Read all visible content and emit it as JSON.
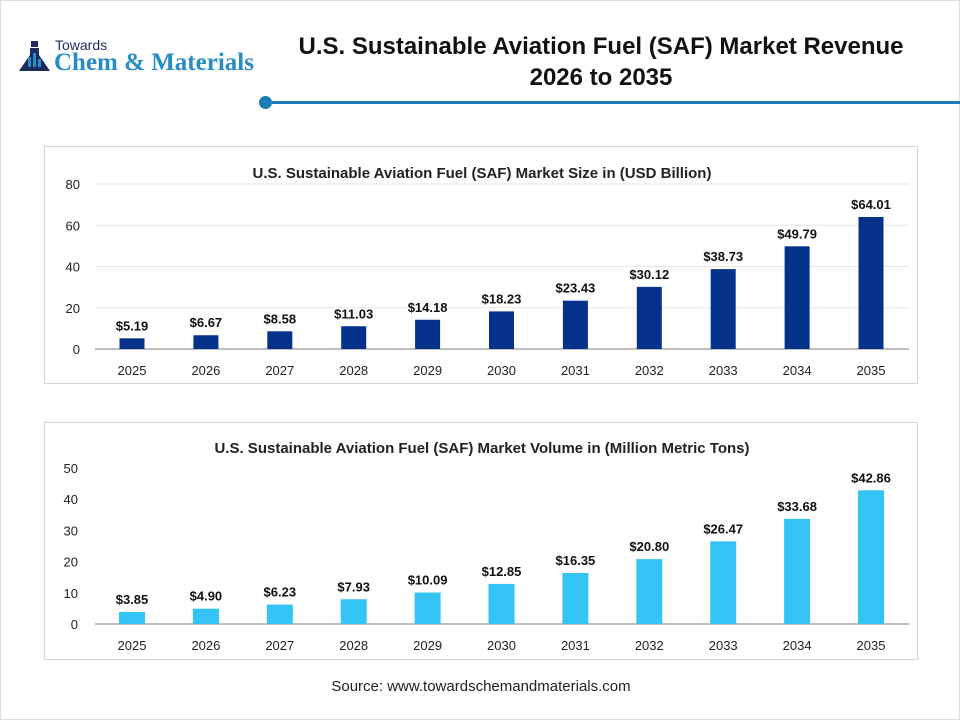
{
  "header": {
    "logo_top": "Towards",
    "logo_main": "Chem & Materials",
    "title_line1": "U.S. Sustainable Aviation Fuel (SAF) Market Revenue",
    "title_line2": "2026 to 2035",
    "accent_color": "#1a7db8"
  },
  "chart_data": [
    {
      "type": "bar",
      "title": "U.S. Sustainable Aviation Fuel (SAF) Market Size in (USD Billion)",
      "categories": [
        "2025",
        "2026",
        "2027",
        "2028",
        "2029",
        "2030",
        "2031",
        "2032",
        "2033",
        "2034",
        "2035"
      ],
      "values": [
        5.19,
        6.67,
        8.58,
        11.03,
        14.18,
        18.23,
        23.43,
        30.12,
        38.73,
        49.79,
        64.01
      ],
      "labels": [
        "$5.19",
        "$6.67",
        "$8.58",
        "$11.03",
        "$14.18",
        "$18.23",
        "$23.43",
        "$30.12",
        "$38.73",
        "$49.79",
        "$64.01"
      ],
      "yticks": [
        "0",
        "20",
        "40",
        "60",
        "80"
      ],
      "ylim": [
        0,
        80
      ],
      "grid": true,
      "color": "#04318a"
    },
    {
      "type": "bar",
      "title": "U.S. Sustainable Aviation Fuel (SAF) Market Volume in (Million Metric Tons)",
      "categories": [
        "2025",
        "2026",
        "2027",
        "2028",
        "2029",
        "2030",
        "2031",
        "2032",
        "2033",
        "2034",
        "2035"
      ],
      "values": [
        3.85,
        4.9,
        6.23,
        7.93,
        10.09,
        12.85,
        16.35,
        20.8,
        26.47,
        33.68,
        42.86
      ],
      "labels": [
        "$3.85",
        "$4.90",
        "$6.23",
        "$7.93",
        "$10.09",
        "$12.85",
        "$16.35",
        "$20.80",
        "$26.47",
        "$33.68",
        "$42.86"
      ],
      "yticks": [
        "0",
        "10",
        "20",
        "30",
        "40",
        "50"
      ],
      "ylim": [
        0,
        50
      ],
      "grid": false,
      "color": "#33c4f5"
    }
  ],
  "footer": {
    "source": "Source: www.towardschemandmaterials.com"
  }
}
